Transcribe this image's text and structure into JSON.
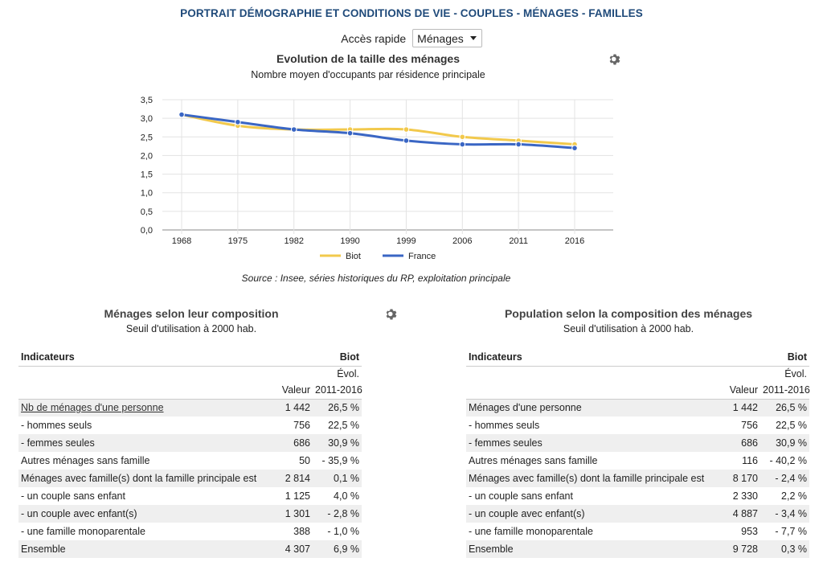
{
  "page_title": "PORTRAIT DÉMOGRAPHIE ET CONDITIONS DE VIE - COUPLES - MÉNAGES - FAMILLES",
  "quick_access": {
    "label": "Accès rapide",
    "selected": "Ménages"
  },
  "chart": {
    "title": "Evolution de la taille des ménages",
    "subtitle": "Nombre moyen d'occupants par résidence principale",
    "source": "Source : Insee, séries historiques du RP, exploitation principale",
    "gear_icon": "gear-icon"
  },
  "chart_data": {
    "type": "line",
    "title": "Evolution de la taille des ménages",
    "subtitle": "Nombre moyen d'occupants par résidence principale",
    "categories": [
      "1968",
      "1975",
      "1982",
      "1990",
      "1999",
      "2006",
      "2011",
      "2016"
    ],
    "ylim": [
      0,
      3.5
    ],
    "yticks": [
      "0,0",
      "0,5",
      "1,0",
      "1,5",
      "2,0",
      "2,5",
      "3,0",
      "3,5"
    ],
    "grid": true,
    "legend": "bottom",
    "series": [
      {
        "name": "Biot",
        "color": "#f2c94c",
        "values": [
          3.1,
          2.8,
          2.7,
          2.7,
          2.7,
          2.5,
          2.4,
          2.3
        ]
      },
      {
        "name": "France",
        "color": "#3a66c4",
        "values": [
          3.1,
          2.9,
          2.7,
          2.6,
          2.4,
          2.3,
          2.3,
          2.2
        ]
      }
    ]
  },
  "table_left": {
    "title": "Ménages selon leur composition",
    "subtitle": "Seuil d'utilisation à 2000 hab.",
    "col_indicator": "Indicateurs",
    "col_place": "Biot",
    "col_value": "Valeur",
    "col_evol_1": "Évol.",
    "col_evol_2": "2011-2016",
    "rows": [
      {
        "label": "Nb de ménages d'une personne",
        "value": "1 442",
        "evol": "26,5 %"
      },
      {
        "label": "- hommes seuls",
        "value": "756",
        "evol": "22,5 %"
      },
      {
        "label": "- femmes seules",
        "value": "686",
        "evol": "30,9 %"
      },
      {
        "label": "Autres ménages sans famille",
        "value": "50",
        "evol": "- 35,9 %"
      },
      {
        "label": "Ménages avec famille(s) dont la famille principale est",
        "value": "2 814",
        "evol": "0,1 %"
      },
      {
        "label": "- un couple sans enfant",
        "value": "1 125",
        "evol": "4,0 %"
      },
      {
        "label": "- un couple avec enfant(s)",
        "value": "1 301",
        "evol": "- 2,8 %"
      },
      {
        "label": "- une famille monoparentale",
        "value": "388",
        "evol": "- 1,0 %"
      },
      {
        "label": "Ensemble",
        "value": "4 307",
        "evol": "6,9 %"
      }
    ]
  },
  "table_right": {
    "title": "Population selon la composition des ménages",
    "subtitle": "Seuil d'utilisation à 2000 hab.",
    "col_indicator": "Indicateurs",
    "col_place": "Biot",
    "col_value": "Valeur",
    "col_evol_1": "Évol.",
    "col_evol_2": "2011-2016",
    "rows": [
      {
        "label": "Ménages d'une personne",
        "value": "1 442",
        "evol": "26,5 %"
      },
      {
        "label": "- hommes seuls",
        "value": "756",
        "evol": "22,5 %"
      },
      {
        "label": "- femmes seules",
        "value": "686",
        "evol": "30,9 %"
      },
      {
        "label": "Autres ménages sans famille",
        "value": "116",
        "evol": "- 40,2 %"
      },
      {
        "label": "Ménages avec famille(s) dont la famille principale est",
        "value": "8 170",
        "evol": "- 2,4 %"
      },
      {
        "label": "- un couple sans enfant",
        "value": "2 330",
        "evol": "2,2 %"
      },
      {
        "label": "- un couple avec enfant(s)",
        "value": "4 887",
        "evol": "- 3,4 %"
      },
      {
        "label": "- une famille monoparentale",
        "value": "953",
        "evol": "- 7,7 %"
      },
      {
        "label": "Ensemble",
        "value": "9 728",
        "evol": "0,3 %"
      }
    ]
  }
}
